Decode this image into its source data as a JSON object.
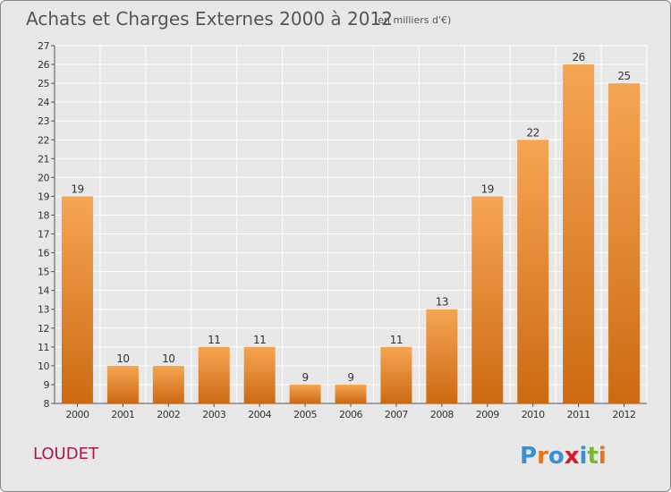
{
  "header": {
    "title": "Achats et Charges Externes 2000 à 2012",
    "subtitle": "(en milliers d'€)"
  },
  "commune": "LOUDET",
  "logo": {
    "text": "Proxiti",
    "colors": [
      "#3a8fd6",
      "#e8731c",
      "#3a8fd6",
      "#d91a2a",
      "#3a8fd6",
      "#7ab82e",
      "#e8731c"
    ]
  },
  "chart_data": {
    "type": "bar",
    "title": "Achats et Charges Externes 2000 à 2012",
    "subtitle": "(en milliers d'€)",
    "categories": [
      "2000",
      "2001",
      "2002",
      "2003",
      "2004",
      "2005",
      "2006",
      "2007",
      "2008",
      "2009",
      "2010",
      "2011",
      "2012"
    ],
    "values": [
      19,
      10,
      10,
      11,
      11,
      9,
      9,
      11,
      13,
      19,
      22,
      26,
      25
    ],
    "ylim": [
      8,
      27
    ],
    "yticks": [
      8,
      9,
      10,
      11,
      12,
      13,
      14,
      15,
      16,
      17,
      18,
      19,
      20,
      21,
      22,
      23,
      24,
      25,
      26,
      27
    ],
    "grid": true,
    "bar_color_top": "#f6a553",
    "bar_color_bottom": "#cc6a12"
  }
}
